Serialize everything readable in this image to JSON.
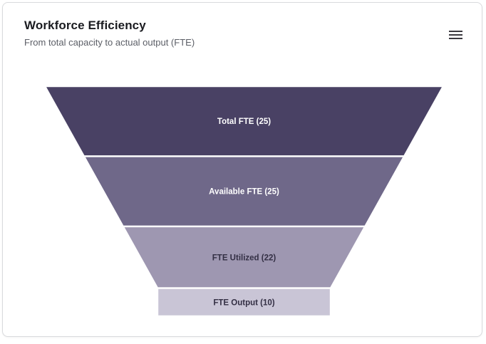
{
  "card": {
    "title": "Workforce Efficiency",
    "subtitle": "From total capacity to actual output (FTE)"
  },
  "menu": {
    "icon": "hamburger-icon"
  },
  "chart_data": {
    "type": "funnel",
    "title": "Workforce Efficiency",
    "subtitle": "From total capacity to actual output (FTE)",
    "orientation": "vertical-inverted",
    "stages": [
      "Total FTE",
      "Available FTE",
      "FTE Utilized",
      "FTE Output"
    ],
    "values": [
      25,
      25,
      22,
      10
    ],
    "labels": [
      "Total FTE (25)",
      "Available FTE (25)",
      "FTE Utilized (22)",
      "FTE Output (10)"
    ],
    "colors": [
      "#494164",
      "#6f6889",
      "#9e97b1",
      "#c9c5d6"
    ],
    "label_colors": [
      "#ffffff",
      "#ffffff",
      "#332f44",
      "#332f44"
    ],
    "separator_color": "#ffffff",
    "layout_hints": {
      "segment_heights": "proportional to values",
      "last_segment": "rectangular neck",
      "labels": "centered inside segments",
      "legend": "none",
      "axes": "none"
    }
  }
}
